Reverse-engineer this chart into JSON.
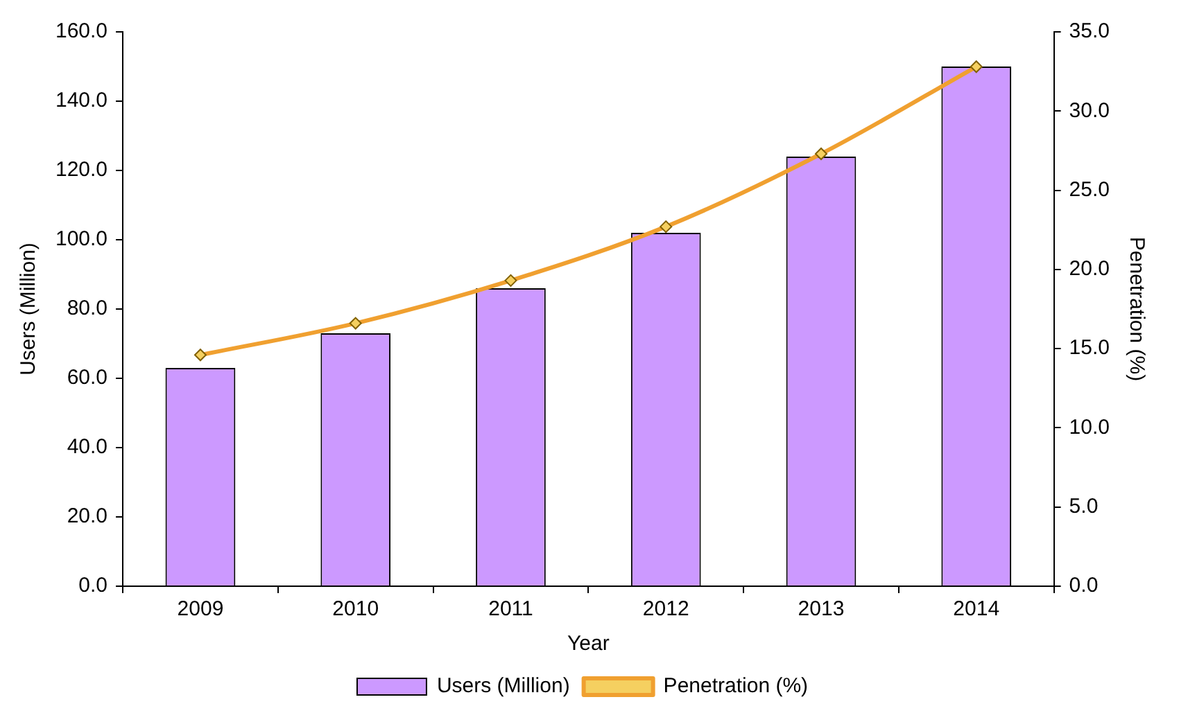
{
  "chart_data": {
    "type": "bar",
    "xlabel": "Year",
    "ylabel": "Users (Million)",
    "y2label": "Penetration (%)",
    "categories": [
      "2009",
      "2010",
      "2011",
      "2012",
      "2013",
      "2014"
    ],
    "series": [
      {
        "name": "Users (Million)",
        "color": "#cc99ff",
        "values": [
          63,
          73,
          86,
          102,
          124,
          150
        ]
      },
      {
        "name": "Penetration (%)",
        "type": "line",
        "axis": "y2",
        "color": "#f0a030",
        "values": [
          14.6,
          16.6,
          19.3,
          22.7,
          27.3,
          32.8
        ]
      }
    ],
    "ylim": [
      0,
      160
    ],
    "yticks": [
      {
        "value": 0,
        "label": "0.0"
      },
      {
        "value": 20,
        "label": "20.0"
      },
      {
        "value": 40,
        "label": "40.0"
      },
      {
        "value": 60,
        "label": "60.0"
      },
      {
        "value": 80,
        "label": "80.0"
      },
      {
        "value": 100,
        "label": "100.0"
      },
      {
        "value": 120,
        "label": "120.0"
      },
      {
        "value": 140,
        "label": "140.0"
      },
      {
        "value": 160,
        "label": "160.0"
      }
    ],
    "y2lim": [
      0,
      35
    ],
    "y2ticks": [
      {
        "value": 0,
        "label": "0.0"
      },
      {
        "value": 5,
        "label": "5.0"
      },
      {
        "value": 10,
        "label": "10.0"
      },
      {
        "value": 15,
        "label": "15.0"
      },
      {
        "value": 20,
        "label": "20.0"
      },
      {
        "value": 25,
        "label": "25.0"
      },
      {
        "value": 30,
        "label": "30.0"
      },
      {
        "value": 35,
        "label": "35.0"
      }
    ],
    "grid": false,
    "legend": "bottom",
    "marker": "diamond"
  }
}
